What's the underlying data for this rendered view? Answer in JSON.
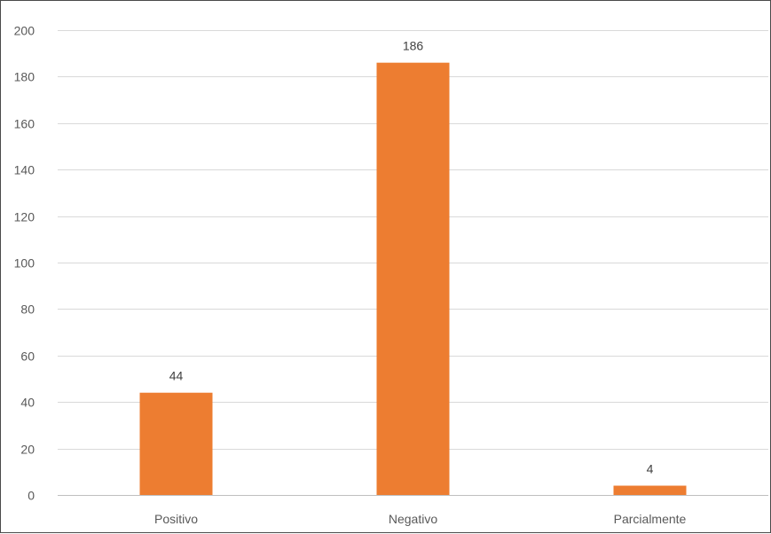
{
  "chart_data": {
    "type": "bar",
    "title": "",
    "xlabel": "",
    "ylabel": "",
    "categories": [
      "Positivo",
      "Negativo",
      "Parcialmente"
    ],
    "values": [
      44,
      186,
      4
    ],
    "data_labels": [
      "44",
      "186",
      "4"
    ],
    "ylim": [
      0,
      200
    ],
    "yticks": [
      0,
      20,
      40,
      60,
      80,
      100,
      120,
      140,
      160,
      180,
      200
    ],
    "ytick_labels": [
      "0",
      "20",
      "40",
      "60",
      "80",
      "100",
      "120",
      "140",
      "160",
      "180",
      "200"
    ],
    "grid": "horizontal",
    "legend": "none",
    "colors": {
      "bar": "#ED7D31",
      "grid": "#D9D9D9",
      "axis": "#BFBFBF",
      "text": "#595959"
    }
  }
}
